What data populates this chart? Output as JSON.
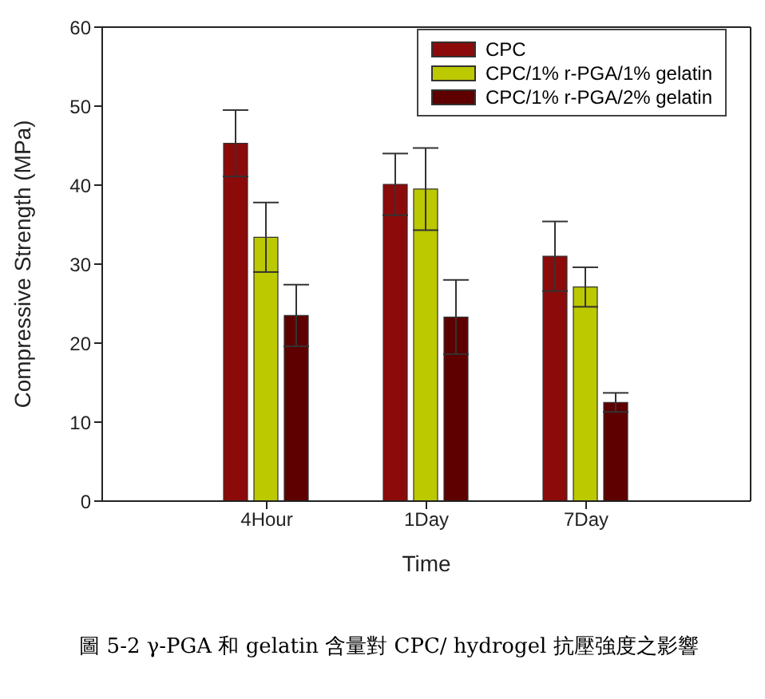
{
  "chart_data": {
    "type": "bar",
    "xlabel": "Time",
    "ylabel": "Compressive Strength (MPa)",
    "categories": [
      "4Hour",
      "1Day",
      "7Day"
    ],
    "series": [
      {
        "name": "CPC",
        "color": "#8c0a0a",
        "values": [
          45.3,
          40.1,
          31.0
        ],
        "errors": [
          4.2,
          3.9,
          4.4
        ]
      },
      {
        "name": "CPC/1% r-PGA/1% gelatin",
        "color": "#bcc800",
        "values": [
          33.4,
          39.5,
          27.1
        ],
        "errors": [
          4.4,
          5.2,
          2.5
        ]
      },
      {
        "name": "CPC/1% r-PGA/2% gelatin",
        "color": "#5e0000",
        "values": [
          23.5,
          23.3,
          12.5
        ],
        "errors": [
          3.9,
          4.7,
          1.2
        ]
      }
    ],
    "ylim": [
      0,
      60
    ],
    "yticks": [
      0,
      10,
      20,
      30,
      40,
      50,
      60
    ],
    "grid": false,
    "legend": "top right",
    "annotations": [
      "圖 5-2  γ-PGA 和 gelatin 含量對 CPC/ hydrogel 抗壓強度之影響"
    ]
  }
}
